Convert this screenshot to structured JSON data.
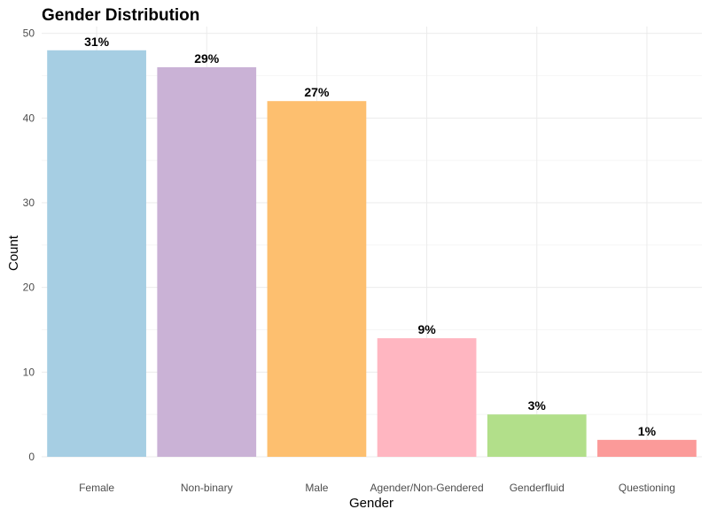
{
  "chart_data": {
    "type": "bar",
    "title": "Gender Distribution",
    "xlabel": "Gender",
    "ylabel": "Count",
    "ylim": [
      0,
      50
    ],
    "yticks": [
      0,
      10,
      20,
      30,
      40,
      50
    ],
    "grid": true,
    "legend": "none",
    "categories": [
      "Female",
      "Non-binary",
      "Male",
      "Agender/Non-Gendered",
      "Genderfluid",
      "Questioning"
    ],
    "values": [
      48,
      46,
      42,
      14,
      5,
      2
    ],
    "data_labels": [
      "31%",
      "29%",
      "27%",
      "9%",
      "3%",
      "1%"
    ],
    "colors": [
      "#a6cee3",
      "#cab2d6",
      "#fdbf6f",
      "#ffb6c1",
      "#b2df8a",
      "#fb9a99"
    ]
  }
}
